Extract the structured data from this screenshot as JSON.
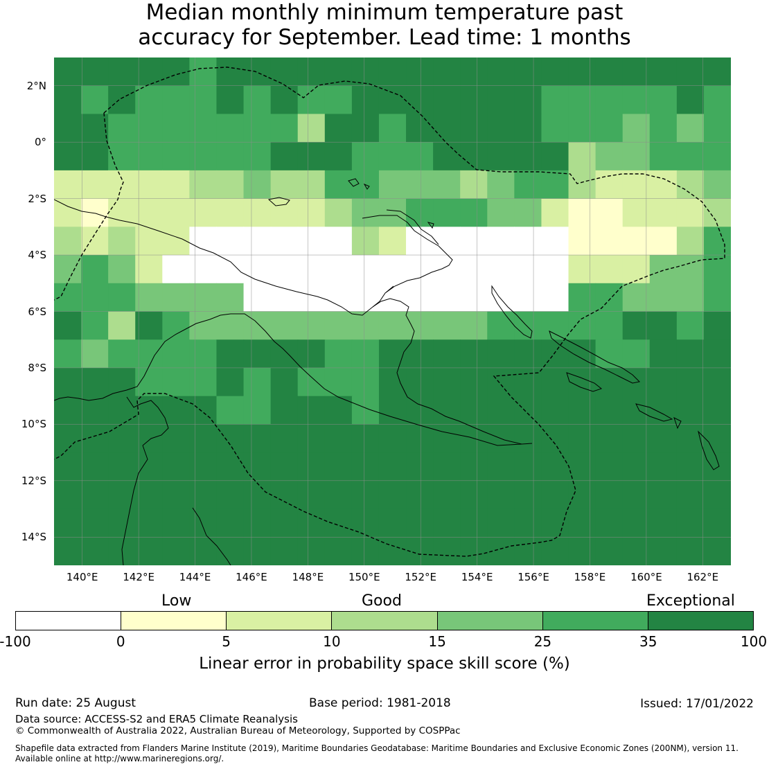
{
  "title": {
    "line1": "Median monthly minimum temperature past",
    "line2": "accuracy for September. Lead time: 1 months"
  },
  "map": {
    "lon_range": [
      139,
      163
    ],
    "lat_range": [
      -15,
      3
    ],
    "lat_ticks": [
      {
        "value": 2,
        "label": "2°N"
      },
      {
        "value": 0,
        "label": "0°"
      },
      {
        "value": -2,
        "label": "2°S"
      },
      {
        "value": -4,
        "label": "4°S"
      },
      {
        "value": -6,
        "label": "6°S"
      },
      {
        "value": -8,
        "label": "8°S"
      },
      {
        "value": -10,
        "label": "10°S"
      },
      {
        "value": -12,
        "label": "12°S"
      },
      {
        "value": -14,
        "label": "14°S"
      }
    ],
    "lon_ticks": [
      {
        "value": 140,
        "label": "140°E"
      },
      {
        "value": 142,
        "label": "142°E"
      },
      {
        "value": 144,
        "label": "144°E"
      },
      {
        "value": 146,
        "label": "146°E"
      },
      {
        "value": 148,
        "label": "148°E"
      },
      {
        "value": 150,
        "label": "150°E"
      },
      {
        "value": 152,
        "label": "152°E"
      },
      {
        "value": 154,
        "label": "154°E"
      },
      {
        "value": 156,
        "label": "156°E"
      },
      {
        "value": 158,
        "label": "158°E"
      },
      {
        "value": 160,
        "label": "160°E"
      },
      {
        "value": 162,
        "label": "162°E"
      }
    ],
    "grid": true
  },
  "colorbar": {
    "category_labels": {
      "low": "Low",
      "good": "Good",
      "exceptional": "Exceptional"
    },
    "ticks": [
      "-100",
      "0",
      "5",
      "10",
      "15",
      "25",
      "35",
      "100"
    ],
    "colors": [
      "#ffffff",
      "#ffffcc",
      "#d9f0a3",
      "#addd8e",
      "#78c679",
      "#41ab5d",
      "#238443"
    ],
    "label": "Linear error in probability space skill score (%)"
  },
  "footer": {
    "run_date": "Run date: 25 August",
    "base_period": "Base period: 1981-2018",
    "issued": "Issued: 17/01/2022",
    "data_source": "Data source: ACCESS-S2 and ERA5 Climate Reanalysis",
    "copyright": "© Commonwealth of Australia 2022, Australian Bureau of Meteorology, Supported by COSPPac",
    "shapefile_line1": "Shapefile data extracted from Flanders Marine Institute (2019), Maritime Boundaries Geodatabase: Maritime Boundaries and Exclusive Economic Zones (200NM), version 11.",
    "shapefile_line2": "Available online at http://www.marineregions.org/."
  }
}
